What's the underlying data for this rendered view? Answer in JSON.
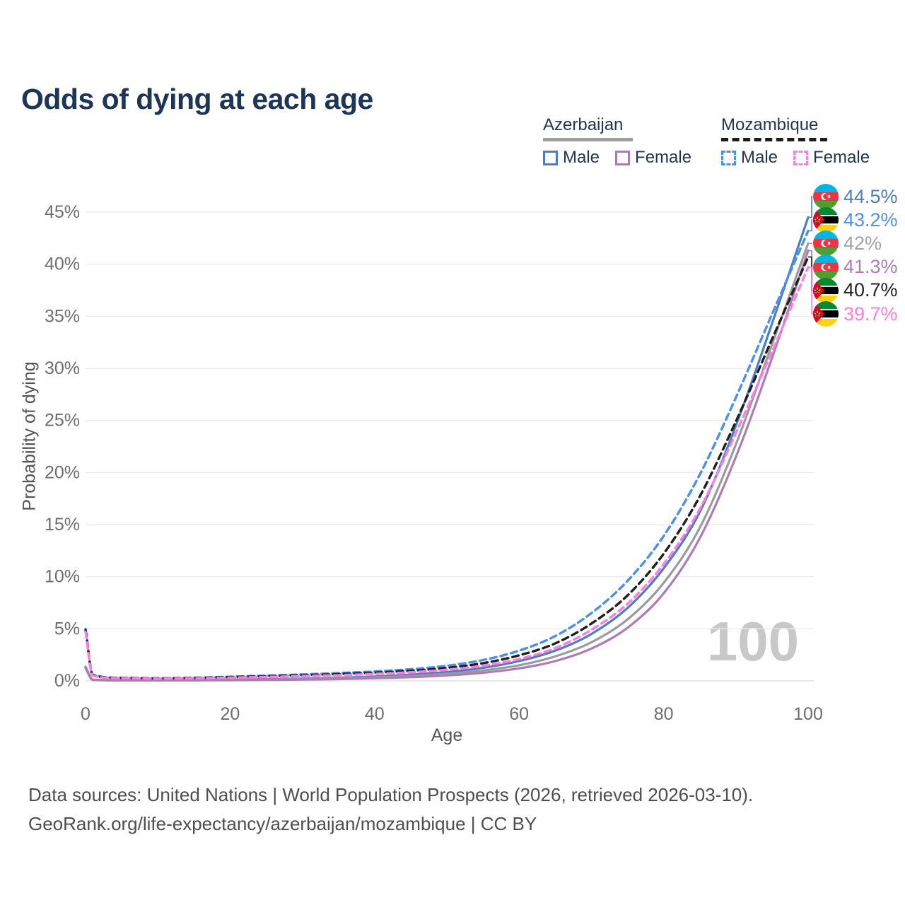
{
  "title": "Odds of dying at each age",
  "legend": {
    "groups": [
      {
        "country": "Azerbaijan",
        "line_style": "solid",
        "underline_color": "#9e9e9e",
        "items": [
          {
            "label": "Male",
            "color": "#4d7ec3",
            "dashed": false
          },
          {
            "label": "Female",
            "color": "#ad7cb5",
            "dashed": false
          }
        ]
      },
      {
        "country": "Mozambique",
        "line_style": "dashed",
        "underline_color": "#1c1c1c",
        "items": [
          {
            "label": "Male",
            "color": "#4a90f0",
            "dashed": true
          },
          {
            "label": "Female",
            "color": "#fb7ee0",
            "dashed": true
          }
        ]
      }
    ]
  },
  "chart": {
    "age_counter": "100"
  },
  "chart_data": {
    "type": "line",
    "title": "Odds of dying at each age",
    "xlabel": "Age",
    "ylabel": "Probability of dying",
    "xlim": [
      0,
      100
    ],
    "ylim": [
      0,
      47
    ],
    "grid": "horizontal",
    "x_ticks": [
      {
        "v": 0,
        "label": "0"
      },
      {
        "v": 20,
        "label": "20"
      },
      {
        "v": 40,
        "label": "40"
      },
      {
        "v": 60,
        "label": "60"
      },
      {
        "v": 80,
        "label": "80"
      },
      {
        "v": 100,
        "label": "100"
      }
    ],
    "y_ticks": [
      {
        "v": 0,
        "label": "0%"
      },
      {
        "v": 5,
        "label": "5%"
      },
      {
        "v": 10,
        "label": "10%"
      },
      {
        "v": 15,
        "label": "15%"
      },
      {
        "v": 20,
        "label": "20%"
      },
      {
        "v": 25,
        "label": "25%"
      },
      {
        "v": 30,
        "label": "30%"
      },
      {
        "v": 35,
        "label": "35%"
      },
      {
        "v": 40,
        "label": "40%"
      },
      {
        "v": 45,
        "label": "45%"
      }
    ],
    "series": [
      {
        "name": "Azerbaijan Male",
        "color": "#4d7ec3",
        "dashed": false,
        "points": [
          [
            0,
            1.35
          ],
          [
            1,
            0.12
          ],
          [
            5,
            0.06
          ],
          [
            10,
            0.06
          ],
          [
            15,
            0.09
          ],
          [
            20,
            0.13
          ],
          [
            25,
            0.17
          ],
          [
            30,
            0.22
          ],
          [
            35,
            0.3
          ],
          [
            40,
            0.42
          ],
          [
            45,
            0.6
          ],
          [
            50,
            0.85
          ],
          [
            55,
            1.25
          ],
          [
            60,
            1.9
          ],
          [
            65,
            2.9
          ],
          [
            70,
            4.5
          ],
          [
            75,
            7.0
          ],
          [
            80,
            10.8
          ],
          [
            85,
            16.2
          ],
          [
            90,
            24.5
          ],
          [
            95,
            34.3
          ],
          [
            100,
            44.5
          ]
        ]
      },
      {
        "name": "Azerbaijan All",
        "color": "#9b9b9b",
        "dashed": false,
        "points": [
          [
            0,
            1.28
          ],
          [
            1,
            0.11
          ],
          [
            5,
            0.05
          ],
          [
            10,
            0.05
          ],
          [
            15,
            0.07
          ],
          [
            20,
            0.1
          ],
          [
            25,
            0.13
          ],
          [
            30,
            0.17
          ],
          [
            35,
            0.24
          ],
          [
            40,
            0.33
          ],
          [
            45,
            0.47
          ],
          [
            50,
            0.67
          ],
          [
            55,
            1.0
          ],
          [
            60,
            1.5
          ],
          [
            65,
            2.35
          ],
          [
            70,
            3.7
          ],
          [
            75,
            5.9
          ],
          [
            80,
            9.4
          ],
          [
            85,
            14.7
          ],
          [
            90,
            22.7
          ],
          [
            95,
            32.3
          ],
          [
            100,
            42.0
          ]
        ]
      },
      {
        "name": "Azerbaijan Female",
        "color": "#ad7cb5",
        "dashed": false,
        "points": [
          [
            0,
            1.2
          ],
          [
            1,
            0.1
          ],
          [
            5,
            0.04
          ],
          [
            10,
            0.04
          ],
          [
            15,
            0.05
          ],
          [
            20,
            0.07
          ],
          [
            25,
            0.09
          ],
          [
            30,
            0.12
          ],
          [
            35,
            0.17
          ],
          [
            40,
            0.25
          ],
          [
            45,
            0.35
          ],
          [
            50,
            0.52
          ],
          [
            55,
            0.78
          ],
          [
            60,
            1.2
          ],
          [
            65,
            1.9
          ],
          [
            70,
            3.1
          ],
          [
            75,
            5.1
          ],
          [
            80,
            8.4
          ],
          [
            85,
            13.7
          ],
          [
            90,
            21.5
          ],
          [
            95,
            31.0
          ],
          [
            100,
            41.3
          ]
        ]
      },
      {
        "name": "Mozambique Male",
        "color": "#4a90f0",
        "dashed": true,
        "points": [
          [
            0,
            5.0
          ],
          [
            1,
            0.6
          ],
          [
            5,
            0.3
          ],
          [
            10,
            0.25
          ],
          [
            15,
            0.3
          ],
          [
            20,
            0.4
          ],
          [
            25,
            0.5
          ],
          [
            30,
            0.62
          ],
          [
            35,
            0.75
          ],
          [
            40,
            0.9
          ],
          [
            45,
            1.12
          ],
          [
            50,
            1.45
          ],
          [
            55,
            2.0
          ],
          [
            60,
            2.9
          ],
          [
            65,
            4.3
          ],
          [
            70,
            6.5
          ],
          [
            75,
            9.6
          ],
          [
            80,
            13.9
          ],
          [
            85,
            19.8
          ],
          [
            90,
            27.2
          ],
          [
            95,
            35.2
          ],
          [
            100,
            43.2
          ]
        ]
      },
      {
        "name": "Mozambique All",
        "color": "#1f1f1f",
        "dashed": true,
        "points": [
          [
            0,
            4.85
          ],
          [
            1,
            0.55
          ],
          [
            5,
            0.28
          ],
          [
            10,
            0.23
          ],
          [
            15,
            0.27
          ],
          [
            20,
            0.36
          ],
          [
            25,
            0.44
          ],
          [
            30,
            0.54
          ],
          [
            35,
            0.65
          ],
          [
            40,
            0.79
          ],
          [
            45,
            0.97
          ],
          [
            50,
            1.25
          ],
          [
            55,
            1.7
          ],
          [
            60,
            2.45
          ],
          [
            65,
            3.6
          ],
          [
            70,
            5.5
          ],
          [
            75,
            8.2
          ],
          [
            80,
            12.2
          ],
          [
            85,
            17.7
          ],
          [
            90,
            24.9
          ],
          [
            95,
            32.8
          ],
          [
            100,
            40.7
          ]
        ]
      },
      {
        "name": "Mozambique Female",
        "color": "#fb7ee0",
        "dashed": true,
        "points": [
          [
            0,
            4.7
          ],
          [
            1,
            0.5
          ],
          [
            5,
            0.26
          ],
          [
            10,
            0.21
          ],
          [
            15,
            0.24
          ],
          [
            20,
            0.31
          ],
          [
            25,
            0.38
          ],
          [
            30,
            0.46
          ],
          [
            35,
            0.55
          ],
          [
            40,
            0.67
          ],
          [
            45,
            0.83
          ],
          [
            50,
            1.07
          ],
          [
            55,
            1.45
          ],
          [
            60,
            2.1
          ],
          [
            65,
            3.15
          ],
          [
            70,
            4.9
          ],
          [
            75,
            7.4
          ],
          [
            80,
            11.2
          ],
          [
            85,
            16.5
          ],
          [
            90,
            23.8
          ],
          [
            95,
            31.6
          ],
          [
            100,
            39.7
          ]
        ]
      }
    ],
    "legend_position": "top-right",
    "age_counter_watermark": "100"
  },
  "end_labels": [
    {
      "series": "Azerbaijan Male",
      "flag": "azerbaijan-flag",
      "value": 44.5,
      "label": "44.5%",
      "color": "#4d7ec3"
    },
    {
      "series": "Mozambique Male",
      "flag": "mozambique-flag",
      "value": 43.2,
      "label": "43.2%",
      "color": "#4a90f0"
    },
    {
      "series": "Azerbaijan All",
      "flag": "azerbaijan-flag",
      "value": 42.0,
      "label": "42%",
      "color": "#a3a3a3"
    },
    {
      "series": "Azerbaijan Female",
      "flag": "azerbaijan-flag",
      "value": 41.3,
      "label": "41.3%",
      "color": "#ad7cb5"
    },
    {
      "series": "Mozambique All",
      "flag": "mozambique-flag",
      "value": 40.7,
      "label": "40.7%",
      "color": "#222222"
    },
    {
      "series": "Mozambique Female",
      "flag": "mozambique-flag",
      "value": 39.7,
      "label": "39.7%",
      "color": "#fb7ee0"
    }
  ],
  "flags": {
    "azerbaijan-flag": {
      "bands": [
        "#00b5e2",
        "#ef3340",
        "#509e2f"
      ],
      "crescent": "#ffffff"
    },
    "mozambique-flag": {
      "bands": [
        "#078930",
        "#ffffff",
        "#000000",
        "#ffffff",
        "#fcd116"
      ],
      "triangle": "#e4002b",
      "star": "#fcd116"
    }
  },
  "footer": {
    "line1": "Data sources: United Nations | World Population Prospects (2026, retrieved 2026-03-10).",
    "line2": "GeoRank.org/life-expectancy/azerbaijan/mozambique | CC BY"
  }
}
